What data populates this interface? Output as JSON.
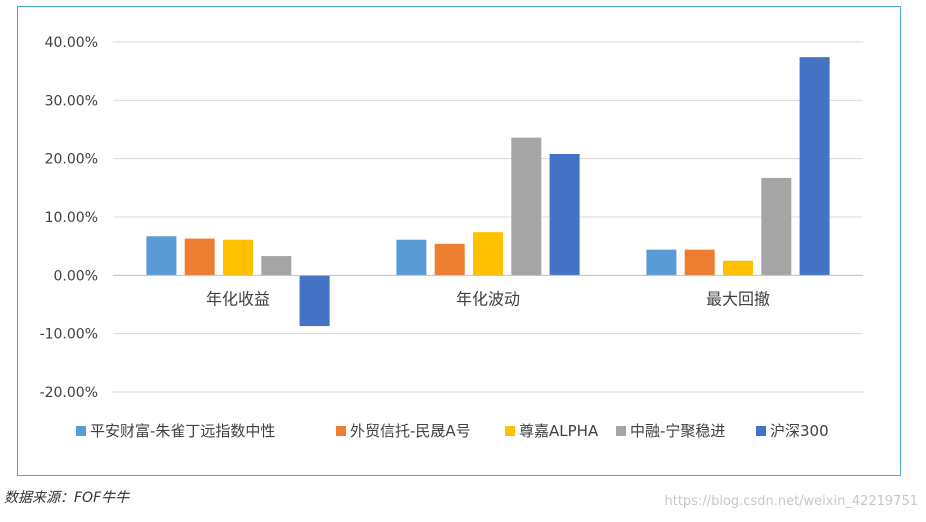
{
  "chart_data": {
    "type": "bar",
    "categories": [
      "年化收益",
      "年化波动",
      "最大回撤"
    ],
    "series": [
      {
        "name": "平安财富-朱雀丁远指数中性",
        "color": "#5b9bd5",
        "values": [
          6.7,
          6.1,
          4.4
        ]
      },
      {
        "name": "外贸信托-民晟A号",
        "color": "#ed7d31",
        "values": [
          6.3,
          5.4,
          4.4
        ]
      },
      {
        "name": "尊嘉ALPHA",
        "color": "#ffc000",
        "values": [
          6.1,
          7.4,
          2.5
        ]
      },
      {
        "name": "中融-宁聚稳进",
        "color": "#a5a5a5",
        "values": [
          3.3,
          23.6,
          16.7
        ]
      },
      {
        "name": "沪深300",
        "color": "#4472c4",
        "values": [
          -8.7,
          20.8,
          37.4
        ]
      }
    ],
    "y_ticks": [
      "40.00%",
      "30.00%",
      "20.00%",
      "10.00%",
      "0.00%",
      "-10.00%",
      "-20.00%"
    ],
    "y_tick_values": [
      40,
      30,
      20,
      10,
      0,
      -10,
      -20
    ],
    "ylim": [
      -20,
      40
    ],
    "grid": true,
    "legend_position": "bottom"
  },
  "source_note": "数据来源：FOF牛牛",
  "watermark": "https://blog.csdn.net/weixin_42219751"
}
